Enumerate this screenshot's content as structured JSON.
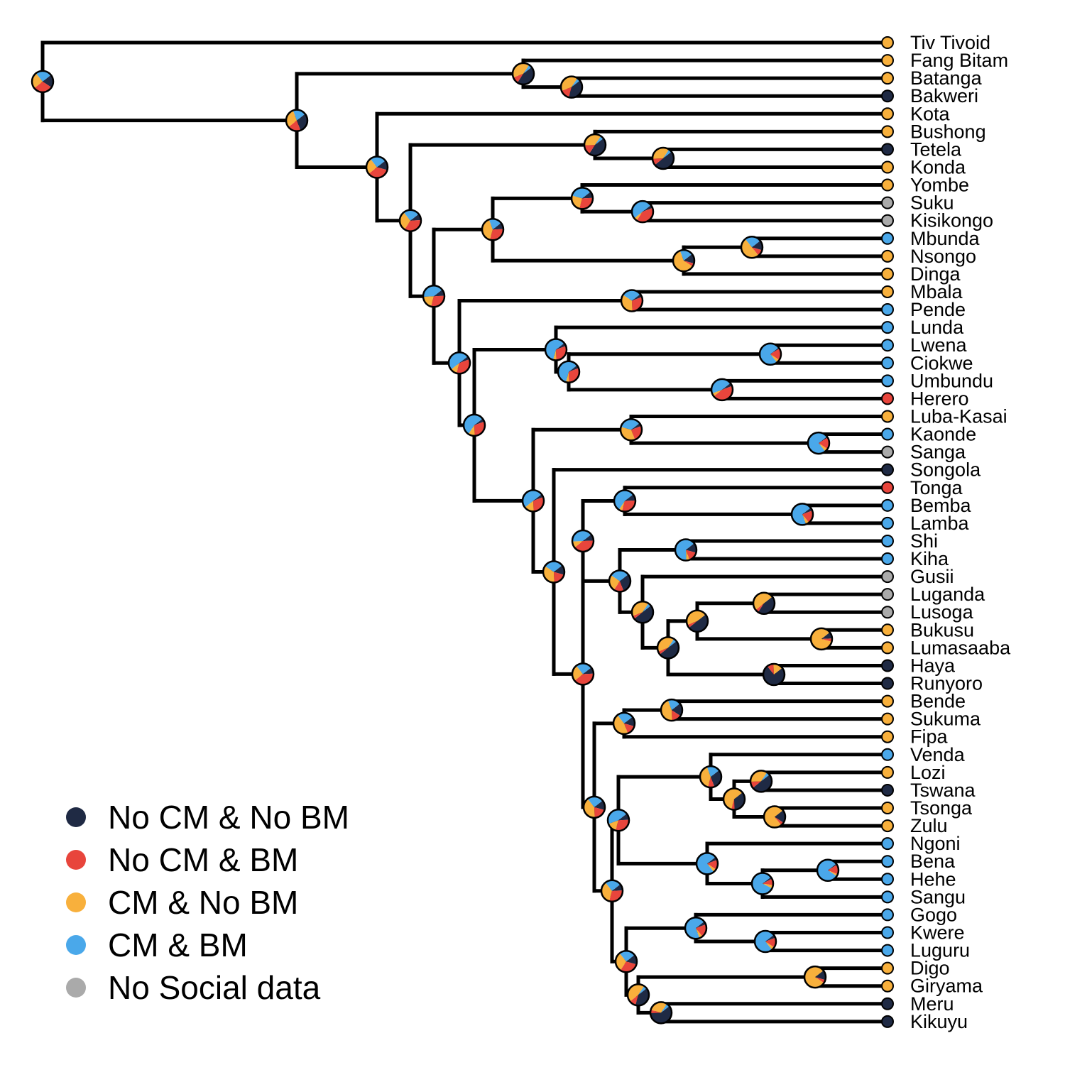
{
  "colors": {
    "no_cm_no_bm": "#1f2a44",
    "no_cm_bm": "#e8453c",
    "cm_no_bm": "#f8b03c",
    "cm_bm": "#4aa8ea",
    "no_data": "#aaaaaa"
  },
  "legend": [
    {
      "key": "no_cm_no_bm",
      "label": "No CM & No BM"
    },
    {
      "key": "no_cm_bm",
      "label": "No CM & BM"
    },
    {
      "key": "cm_no_bm",
      "label": "CM & No BM"
    },
    {
      "key": "cm_bm",
      "label": "CM & BM"
    },
    {
      "key": "no_data",
      "label": "No Social data"
    }
  ],
  "tips": [
    {
      "label": "Tiv Tivoid",
      "state": "cm_no_bm"
    },
    {
      "label": "Fang Bitam",
      "state": "cm_no_bm"
    },
    {
      "label": "Batanga",
      "state": "cm_no_bm"
    },
    {
      "label": "Bakweri",
      "state": "no_cm_no_bm"
    },
    {
      "label": "Kota",
      "state": "cm_no_bm"
    },
    {
      "label": "Bushong",
      "state": "cm_no_bm"
    },
    {
      "label": "Tetela",
      "state": "no_cm_no_bm"
    },
    {
      "label": "Konda",
      "state": "cm_no_bm"
    },
    {
      "label": "Yombe",
      "state": "cm_no_bm"
    },
    {
      "label": "Suku",
      "state": "no_data"
    },
    {
      "label": "Kisikongo",
      "state": "no_data"
    },
    {
      "label": "Mbunda",
      "state": "cm_bm"
    },
    {
      "label": "Nsongo",
      "state": "cm_no_bm"
    },
    {
      "label": "Dinga",
      "state": "cm_no_bm"
    },
    {
      "label": "Mbala",
      "state": "cm_no_bm"
    },
    {
      "label": "Pende",
      "state": "cm_bm"
    },
    {
      "label": "Lunda",
      "state": "cm_bm"
    },
    {
      "label": "Lwena",
      "state": "cm_bm"
    },
    {
      "label": "Ciokwe",
      "state": "cm_bm"
    },
    {
      "label": "Umbundu",
      "state": "cm_bm"
    },
    {
      "label": "Herero",
      "state": "no_cm_bm"
    },
    {
      "label": "Luba-Kasai",
      "state": "cm_no_bm"
    },
    {
      "label": "Kaonde",
      "state": "cm_bm"
    },
    {
      "label": "Sanga",
      "state": "no_data"
    },
    {
      "label": "Songola",
      "state": "no_cm_no_bm"
    },
    {
      "label": "Tonga",
      "state": "no_cm_bm"
    },
    {
      "label": "Bemba",
      "state": "cm_bm"
    },
    {
      "label": "Lamba",
      "state": "cm_bm"
    },
    {
      "label": "Shi",
      "state": "cm_bm"
    },
    {
      "label": "Kiha",
      "state": "cm_bm"
    },
    {
      "label": "Gusii",
      "state": "no_data"
    },
    {
      "label": "Luganda",
      "state": "no_data"
    },
    {
      "label": "Lusoga",
      "state": "no_data"
    },
    {
      "label": "Bukusu",
      "state": "cm_no_bm"
    },
    {
      "label": "Lumasaaba",
      "state": "cm_no_bm"
    },
    {
      "label": "Haya",
      "state": "no_cm_no_bm"
    },
    {
      "label": "Runyoro",
      "state": "no_cm_no_bm"
    },
    {
      "label": "Bende",
      "state": "cm_no_bm"
    },
    {
      "label": "Sukuma",
      "state": "cm_no_bm"
    },
    {
      "label": "Fipa",
      "state": "cm_no_bm"
    },
    {
      "label": "Venda",
      "state": "cm_bm"
    },
    {
      "label": "Lozi",
      "state": "cm_no_bm"
    },
    {
      "label": "Tswana",
      "state": "no_cm_no_bm"
    },
    {
      "label": "Tsonga",
      "state": "cm_no_bm"
    },
    {
      "label": "Zulu",
      "state": "cm_no_bm"
    },
    {
      "label": "Ngoni",
      "state": "cm_bm"
    },
    {
      "label": "Bena",
      "state": "cm_bm"
    },
    {
      "label": "Hehe",
      "state": "cm_bm"
    },
    {
      "label": "Sangu",
      "state": "cm_bm"
    },
    {
      "label": "Gogo",
      "state": "cm_bm"
    },
    {
      "label": "Kwere",
      "state": "cm_bm"
    },
    {
      "label": "Luguru",
      "state": "cm_bm"
    },
    {
      "label": "Digo",
      "state": "cm_no_bm"
    },
    {
      "label": "Giryama",
      "state": "cm_no_bm"
    },
    {
      "label": "Meru",
      "state": "no_cm_no_bm"
    },
    {
      "label": "Kikuyu",
      "state": "no_cm_no_bm"
    }
  ],
  "nodes": [
    {
      "id": "root",
      "children": [
        "t:Tiv Tivoid",
        "n2"
      ],
      "probs": [
        0.2,
        0.3,
        0.25,
        0.25
      ]
    },
    {
      "id": "n2",
      "children": [
        "n3",
        "n5"
      ],
      "probs": [
        0.3,
        0.2,
        0.3,
        0.2
      ]
    },
    {
      "id": "n3",
      "children": [
        "t:Fang Bitam",
        "n4"
      ],
      "probs": [
        0.45,
        0.1,
        0.4,
        0.05
      ]
    },
    {
      "id": "n4",
      "children": [
        "t:Batanga",
        "t:Bakweri"
      ],
      "probs": [
        0.4,
        0.15,
        0.4,
        0.05
      ]
    },
    {
      "id": "n5",
      "children": [
        "t:Kota",
        "n6"
      ],
      "probs": [
        0.15,
        0.35,
        0.25,
        0.25
      ]
    },
    {
      "id": "n6",
      "children": [
        "n7",
        "n9"
      ],
      "probs": [
        0.1,
        0.35,
        0.3,
        0.25
      ]
    },
    {
      "id": "n7",
      "children": [
        "t:Bushong",
        "n8"
      ],
      "probs": [
        0.45,
        0.15,
        0.35,
        0.05
      ]
    },
    {
      "id": "n8",
      "children": [
        "t:Tetela",
        "t:Konda"
      ],
      "probs": [
        0.5,
        0.1,
        0.35,
        0.05
      ]
    },
    {
      "id": "n9",
      "children": [
        "n10",
        "n15"
      ],
      "probs": [
        0.1,
        0.3,
        0.2,
        0.4
      ]
    },
    {
      "id": "n10",
      "children": [
        "n11",
        "n13"
      ],
      "probs": [
        0.1,
        0.3,
        0.4,
        0.2
      ]
    },
    {
      "id": "n11",
      "children": [
        "t:Yombe",
        "n12"
      ],
      "probs": [
        0.1,
        0.3,
        0.25,
        0.35
      ]
    },
    {
      "id": "n12",
      "children": [
        "t:Suku",
        "t:Kisikongo"
      ],
      "probs": [
        0.05,
        0.4,
        0.05,
        0.5
      ]
    },
    {
      "id": "n13",
      "children": [
        "n14",
        "t:Dinga"
      ],
      "probs": [
        0.15,
        0.05,
        0.6,
        0.2
      ]
    },
    {
      "id": "n14",
      "children": [
        "t:Mbunda",
        "t:Nsongo"
      ],
      "probs": [
        0.15,
        0.1,
        0.5,
        0.25
      ]
    },
    {
      "id": "n15",
      "children": [
        "n16",
        "n17"
      ],
      "probs": [
        0.05,
        0.35,
        0.1,
        0.5
      ]
    },
    {
      "id": "n16",
      "children": [
        "t:Mbala",
        "t:Pende"
      ],
      "probs": [
        0.05,
        0.3,
        0.35,
        0.3
      ]
    },
    {
      "id": "n17",
      "children": [
        "n18",
        "n22"
      ],
      "probs": [
        0.05,
        0.3,
        0.1,
        0.55
      ]
    },
    {
      "id": "n18",
      "children": [
        "t:Lunda",
        "n19"
      ],
      "probs": [
        0.05,
        0.3,
        0.05,
        0.6
      ]
    },
    {
      "id": "n19",
      "children": [
        "n20",
        "n21"
      ],
      "probs": [
        0.05,
        0.3,
        0.05,
        0.6
      ]
    },
    {
      "id": "n20",
      "children": [
        "t:Lwena",
        "t:Ciokwe"
      ],
      "probs": [
        0.02,
        0.18,
        0.05,
        0.75
      ]
    },
    {
      "id": "n21",
      "children": [
        "t:Umbundu",
        "t:Herero"
      ],
      "probs": [
        0.05,
        0.45,
        0.05,
        0.45
      ]
    },
    {
      "id": "n22",
      "children": [
        "n23",
        "n25"
      ],
      "probs": [
        0.05,
        0.3,
        0.15,
        0.5
      ]
    },
    {
      "id": "n23",
      "children": [
        "t:Luba-Kasai",
        "n24"
      ],
      "probs": [
        0.05,
        0.25,
        0.35,
        0.35
      ]
    },
    {
      "id": "n24",
      "children": [
        "t:Kaonde",
        "t:Sanga"
      ],
      "probs": [
        0.02,
        0.18,
        0.05,
        0.75
      ]
    },
    {
      "id": "n25",
      "children": [
        "n26",
        "n27"
      ],
      "probs": [
        0.15,
        0.2,
        0.35,
        0.3
      ]
    },
    {
      "id": "n26",
      "children": [
        "t:Songola",
        "n28"
      ],
      "probs": [
        0.1,
        0.4,
        0.25,
        0.25
      ]
    },
    {
      "id": "n27",
      "children": [
        "n29",
        "n39"
      ],
      "probs": [
        0.1,
        0.35,
        0.3,
        0.25
      ]
    },
    {
      "id": "n28",
      "children": [
        "n30",
        "n31"
      ],
      "probs": [
        0.1,
        0.4,
        0.1,
        0.4
      ]
    },
    {
      "id": "n30",
      "children": [
        "t:Tonga",
        "n32"
      ],
      "probs": [
        0.1,
        0.3,
        0.05,
        0.55
      ]
    },
    {
      "id": "n32",
      "children": [
        "t:Bemba",
        "t:Lamba"
      ],
      "probs": [
        0.05,
        0.2,
        0.05,
        0.7
      ]
    },
    {
      "id": "n31",
      "children": [
        "n33",
        "n34"
      ],
      "probs": [
        0.3,
        0.15,
        0.25,
        0.3
      ]
    },
    {
      "id": "n33",
      "children": [
        "t:Shi",
        "t:Kiha"
      ],
      "probs": [
        0.15,
        0.15,
        0.05,
        0.65
      ]
    },
    {
      "id": "n34",
      "children": [
        "t:Gusii",
        "n35"
      ],
      "probs": [
        0.5,
        0.05,
        0.4,
        0.05
      ]
    },
    {
      "id": "n35",
      "children": [
        "n36",
        "n38"
      ],
      "probs": [
        0.5,
        0.05,
        0.4,
        0.05
      ]
    },
    {
      "id": "n36",
      "children": [
        "n37",
        "n40"
      ],
      "probs": [
        0.5,
        0.05,
        0.45,
        0.0
      ]
    },
    {
      "id": "n37",
      "children": [
        "t:Luganda",
        "t:Lusoga"
      ],
      "probs": [
        0.45,
        0.05,
        0.5,
        0.0
      ]
    },
    {
      "id": "n40",
      "children": [
        "t:Bukusu",
        "t:Lumasaaba"
      ],
      "probs": [
        0.1,
        0.05,
        0.85,
        0.0
      ]
    },
    {
      "id": "n38",
      "children": [
        "t:Haya",
        "t:Runyoro"
      ],
      "probs": [
        0.75,
        0.1,
        0.15,
        0.0
      ]
    },
    {
      "id": "n39",
      "children": [
        "n41",
        "n43"
      ],
      "probs": [
        0.15,
        0.2,
        0.4,
        0.25
      ]
    },
    {
      "id": "n41",
      "children": [
        "n42",
        "t:Fipa"
      ],
      "probs": [
        0.15,
        0.15,
        0.45,
        0.25
      ]
    },
    {
      "id": "n42",
      "children": [
        "t:Bende",
        "t:Sukuma"
      ],
      "probs": [
        0.2,
        0.15,
        0.45,
        0.2
      ]
    },
    {
      "id": "n43",
      "children": [
        "n44",
        "n48"
      ],
      "probs": [
        0.1,
        0.3,
        0.35,
        0.25
      ]
    },
    {
      "id": "n44",
      "children": [
        "n45",
        "n49"
      ],
      "probs": [
        0.1,
        0.3,
        0.15,
        0.45
      ]
    },
    {
      "id": "n45",
      "children": [
        "t:Venda",
        "n46"
      ],
      "probs": [
        0.3,
        0.1,
        0.4,
        0.2
      ]
    },
    {
      "id": "n46",
      "children": [
        "n47",
        "n50"
      ],
      "probs": [
        0.35,
        0.05,
        0.6,
        0.0
      ]
    },
    {
      "id": "n47",
      "children": [
        "t:Lozi",
        "t:Tswana"
      ],
      "probs": [
        0.5,
        0.1,
        0.35,
        0.05
      ]
    },
    {
      "id": "n50",
      "children": [
        "t:Tsonga",
        "t:Zulu"
      ],
      "probs": [
        0.2,
        0.05,
        0.75,
        0.0
      ]
    },
    {
      "id": "n49",
      "children": [
        "t:Ngoni",
        "n51"
      ],
      "probs": [
        0.05,
        0.15,
        0.05,
        0.75
      ]
    },
    {
      "id": "n51",
      "children": [
        "n52",
        "t:Sangu"
      ],
      "probs": [
        0.03,
        0.1,
        0.05,
        0.82
      ]
    },
    {
      "id": "n52",
      "children": [
        "t:Bena",
        "t:Hehe"
      ],
      "probs": [
        0.02,
        0.15,
        0.03,
        0.8
      ]
    },
    {
      "id": "n48",
      "children": [
        "n53",
        "n55"
      ],
      "probs": [
        0.15,
        0.3,
        0.3,
        0.25
      ]
    },
    {
      "id": "n53",
      "children": [
        "t:Gogo",
        "n54"
      ],
      "probs": [
        0.05,
        0.2,
        0.05,
        0.7
      ]
    },
    {
      "id": "n54",
      "children": [
        "t:Kwere",
        "t:Luguru"
      ],
      "probs": [
        0.05,
        0.15,
        0.05,
        0.75
      ]
    },
    {
      "id": "n55",
      "children": [
        "n56",
        "n57"
      ],
      "probs": [
        0.4,
        0.1,
        0.45,
        0.05
      ]
    },
    {
      "id": "n56",
      "children": [
        "t:Digo",
        "t:Giryama"
      ],
      "probs": [
        0.15,
        0.05,
        0.8,
        0.0
      ]
    },
    {
      "id": "n57",
      "children": [
        "t:Meru",
        "t:Kikuyu"
      ],
      "probs": [
        0.6,
        0.05,
        0.3,
        0.05
      ]
    }
  ]
}
